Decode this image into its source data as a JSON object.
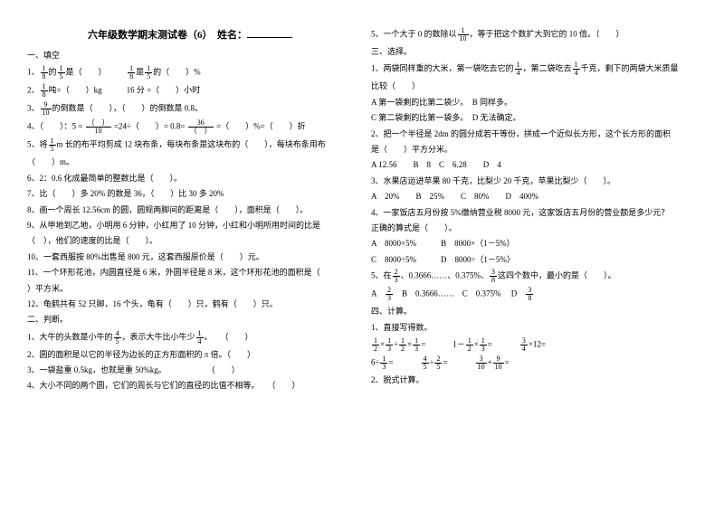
{
  "title": "六年级数学期末测试卷（6）　姓名：",
  "left": {
    "s1_header": "一、填空",
    "q1a": "的",
    "q1b": "是（　　）",
    "q1c": "是",
    "q1d": "的（　　）%",
    "q2a": "吨=（　　）kg　　　16 分 =（　　）小时",
    "q3a": "的倒数是（　　），（　　）的倒数是 0.8。",
    "q4": "4、（　　）：5 =",
    "q4b": "=24÷（　　）= 0.8=",
    "q4c": "=（　　）%=（　　）折",
    "q5a": "5、将",
    "q5b": "m 长的布平均剪成 12 块布条，每块布条是这块布的（　　），每块布条用布",
    "q5c": "（　　）m。",
    "q6": "6、2：0.6 化成最简单的整数比是（　　）。",
    "q7": "7、比（　　）多 20% 的数是 36，（　　）比 30 多 20%",
    "q8": "8、画一个周长 12.56cm 的圆，圆规两脚间的距离是（　　），面积是（　　）。",
    "q9a": "9、从甲地到乙地，小明用 6 分钟，小红用了 10 分钟，小红和小明所用时间的比是",
    "q9b": "（　），他们的速度的比是（　　）。",
    "q10": "10、一套西服按 80%出售是 800 元，这套西服原价是（　　）元。",
    "q11a": "11、一个环形花池，内圆直径是 6 米，外圆半径是 8 米，这个环形花池的面积是（　",
    "q11b": "）平方米。",
    "q12": "12、龟鹤共有 52 只脚，16 个头，龟有（　　）只，鹤有（　　）只。",
    "s2_header": "二、判断。",
    "j1a": "1、大牛的头数是小牛的",
    "j1b": "，表示大牛比小牛少",
    "j1c": "。　　（　　）",
    "j2": "2、圆的面积是以它的半径为边长的正方形面积的 π 倍。（　　）",
    "j3": "3、一袋盐重 0.5kg，也就是重 50%kg。　　　　　　（　　）",
    "j4": "4、大小不同的两个圆，它们的周长与它们的直径的比值不相等。　　（　　）"
  },
  "right": {
    "j5a": "5、一个大于 0 的数除以",
    "j5b": "，等于把这个数扩大到它的 10 倍。（　　）",
    "s3_header": "三、选择。",
    "x1a": "1、两袋同样重的大米，第一袋吃去它的",
    "x1b": "，第二袋吃去",
    "x1c": "千克，剩下的两袋大米质量",
    "x1d": "比较（　　）",
    "x1_a": "A 第一袋剩的比第二袋少。　B 同样多。",
    "x1_c": "C 第二袋剩的比第一袋多。　D 无法确定。",
    "x2a": "2、把一个半径是 2dm 的圆分成若干等份，拼成一个近似长方形，这个长方形的面积",
    "x2b": "是（　　）平方分米。",
    "x2_opts": "A 12.56　　B　8　C　6.28　　D　4",
    "x3": "3、水果店运进苹果 80 千克，比梨少 20 千克，苹果比梨少（　　）。",
    "x3_opts": "A　20%　　B　25%　　C　80%　　D　400%",
    "x4a": "4、一家饭店五月份按 5%缴纳营业税 8000 元，这家饭店五月份的营业额是多少元？",
    "x4b": "正确的算式是（　　）。",
    "x4_a": "A　8000×5%　　　B　8000×（1－5%）",
    "x4_c": "C　8000÷5%　　　D　8000÷（1－5%）",
    "x5a": "5、在",
    "x5b": "、0.3666……、0.375%、",
    "x5c": "这四个数中，最小的是（　　）。",
    "x5_opts_a": "A",
    "x5_opts_b": "　B　0.3666……　C　0.375%　 D",
    "s4_header": "四、计算。",
    "c1": "1、直接写得数。",
    "c2": "2、脱式计算。"
  },
  "fracs": {
    "f1_8": {
      "n": "1",
      "d": "8"
    },
    "f1_5": {
      "n": "1",
      "d": "5"
    },
    "f9_10": {
      "n": "9",
      "d": "10"
    },
    "f1_5m": {
      "n": "1",
      "d": "5"
    },
    "f4_5": {
      "n": "4",
      "d": "5"
    },
    "f1_4": {
      "n": "1",
      "d": "4"
    },
    "f1_10": {
      "n": "1",
      "d": "10"
    },
    "f2_3": {
      "n": "2",
      "d": "3"
    },
    "f3_8": {
      "n": "3",
      "d": "8"
    },
    "f36": {
      "n": "36",
      "d": "（　）"
    },
    "fblank": {
      "n": "（　）",
      "d": "10"
    },
    "c_1_2": {
      "n": "1",
      "d": "2"
    },
    "c_1_3": {
      "n": "1",
      "d": "3"
    },
    "c_4_5": {
      "n": "4",
      "d": "5"
    },
    "c_2_5": {
      "n": "2",
      "d": "5"
    },
    "c_3_4": {
      "n": "3",
      "d": "4"
    },
    "c_3_10": {
      "n": "3",
      "d": "10"
    },
    "c_9_10": {
      "n": "9",
      "d": "10"
    }
  }
}
